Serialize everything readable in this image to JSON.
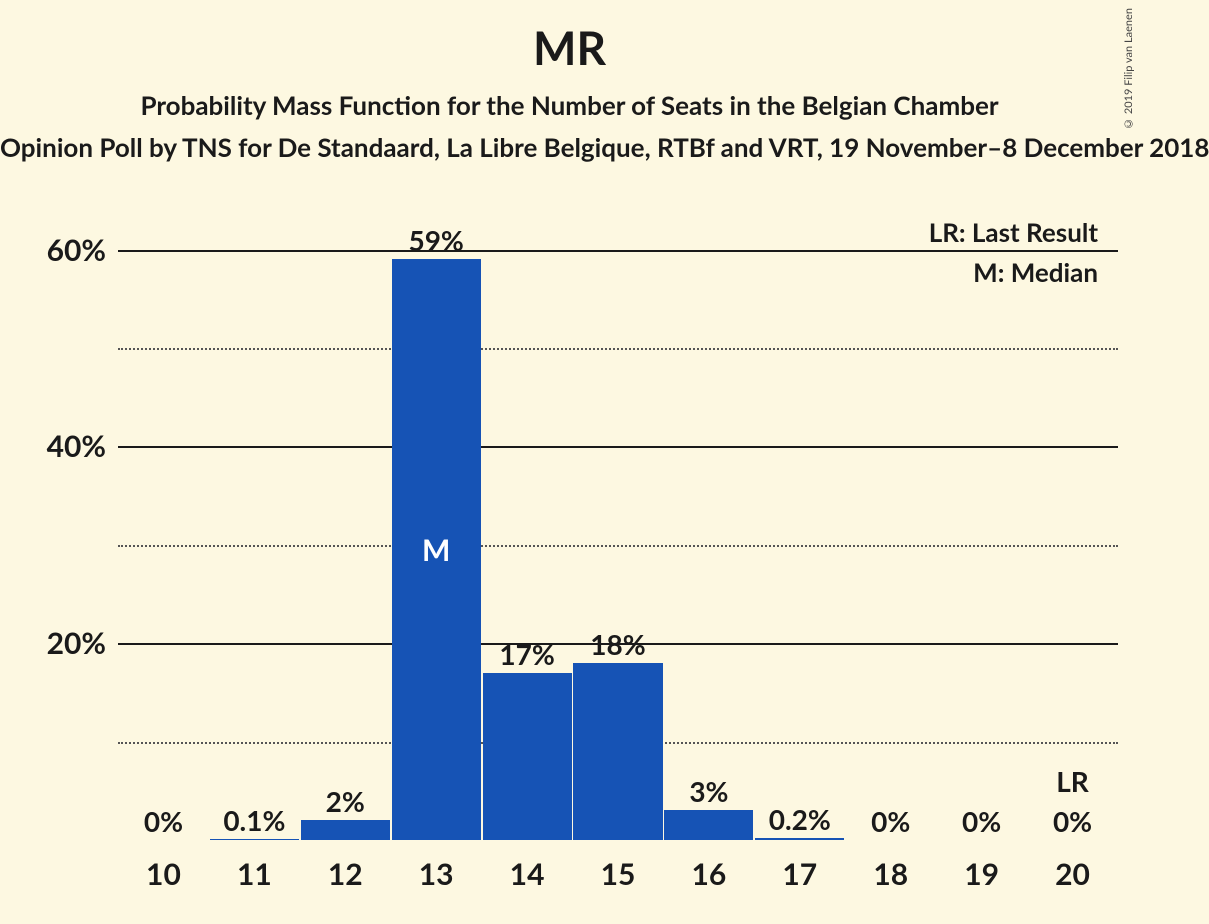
{
  "titles": {
    "main": "MR",
    "sub1": "Probability Mass Function for the Number of Seats in the Belgian Chamber",
    "sub2": "Opinion Poll by TNS for De Standaard, La Libre Belgique, RTBf and VRT, 19 November–8 December 2018"
  },
  "legend": {
    "lr": "LR: Last Result",
    "m": "M: Median"
  },
  "copyright": "© 2019 Filip van Laenen",
  "chart": {
    "type": "bar",
    "bar_color": "#1653b5",
    "background_color": "#fdf8e1",
    "grid_major_color": "#1a1a1a",
    "grid_minor_color": "#555555",
    "text_color": "#1a1a1a",
    "in_bar_text_color": "#ffffff",
    "title_fontsize": 46,
    "subtitle_fontsize": 26,
    "axis_label_fontsize": 30,
    "bar_label_fontsize": 28,
    "y_max": 63,
    "y_ticks_major": [
      20,
      40,
      60
    ],
    "y_ticks_minor": [
      10,
      30,
      50
    ],
    "y_tick_labels": [
      "20%",
      "40%",
      "60%"
    ],
    "bar_width_ratio": 0.98,
    "categories": [
      "10",
      "11",
      "12",
      "13",
      "14",
      "15",
      "16",
      "17",
      "18",
      "19",
      "20"
    ],
    "values": [
      0,
      0.1,
      2,
      59,
      17,
      18,
      3,
      0.2,
      0,
      0,
      0
    ],
    "value_labels": [
      "0%",
      "0.1%",
      "2%",
      "59%",
      "17%",
      "18%",
      "3%",
      "0.2%",
      "0%",
      "0%",
      "0%"
    ],
    "median_index": 3,
    "median_tag": "M",
    "lr_index": 10,
    "lr_tag": "LR"
  }
}
